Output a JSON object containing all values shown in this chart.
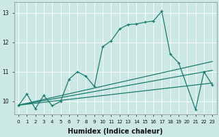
{
  "xlabel": "Humidex (Indice chaleur)",
  "bg_color": "#cce8e4",
  "line_color": "#1a7a6e",
  "grid_color": "#ffffff",
  "x_min": -0.5,
  "x_max": 23.5,
  "y_min": 9.55,
  "y_max": 13.35,
  "yticks": [
    10,
    11,
    12,
    13
  ],
  "xticks": [
    0,
    1,
    2,
    3,
    4,
    5,
    6,
    7,
    8,
    9,
    10,
    11,
    12,
    13,
    14,
    15,
    16,
    17,
    18,
    19,
    20,
    21,
    22,
    23
  ],
  "series1_x": [
    0,
    1,
    2,
    3,
    4,
    5,
    6,
    7,
    8,
    9,
    10,
    11,
    12,
    13,
    14,
    15,
    16,
    17,
    18,
    19,
    21,
    22,
    23
  ],
  "series1_y": [
    9.85,
    10.25,
    9.75,
    10.2,
    9.85,
    10.0,
    10.75,
    11.0,
    10.85,
    10.5,
    11.85,
    12.05,
    12.45,
    12.6,
    12.62,
    12.68,
    12.72,
    13.05,
    11.6,
    11.3,
    9.72,
    11.0,
    10.55
  ],
  "series2_x": [
    0,
    23
  ],
  "series2_y": [
    9.87,
    10.62
  ],
  "series3_x": [
    0,
    23
  ],
  "series3_y": [
    9.87,
    11.35
  ],
  "series4_x": [
    0,
    23
  ],
  "series4_y": [
    9.87,
    11.05
  ],
  "xlabel_fontsize": 7,
  "xlabel_fontweight": "bold",
  "tick_fontsize": 5.5,
  "linewidth": 0.9,
  "marker_size": 3.5,
  "marker_ew": 0.9
}
